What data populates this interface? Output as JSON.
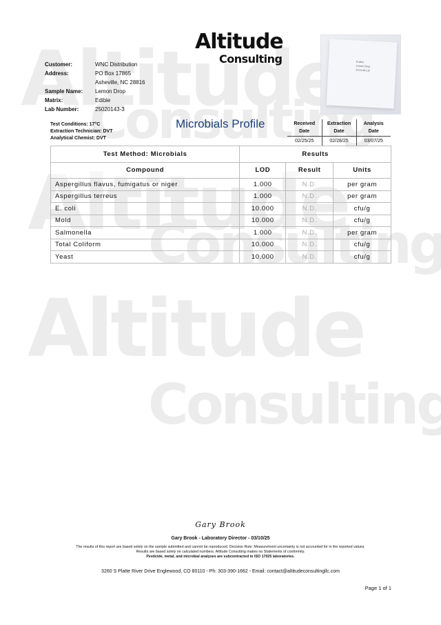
{
  "watermark": {
    "line1": "Altitude",
    "line2": "Consulting"
  },
  "logo": {
    "line1": "Altitude",
    "line2": "Consulting"
  },
  "customer_info": [
    {
      "label": "Customer:",
      "value": "WNC Distribution"
    },
    {
      "label": "Address:",
      "value": "PO Box 17865"
    },
    {
      "label": "",
      "value": "Asheville, NC 28816"
    },
    {
      "label": "Sample Name:",
      "value": "Lemon Drop"
    },
    {
      "label": "Matrix:",
      "value": "Edible"
    },
    {
      "label": "Lab Number:",
      "value": "25020143-3"
    }
  ],
  "sample_photo": {
    "label_lines": [
      "Kushie",
      "Lemon Drop",
      "2411148-LD"
    ]
  },
  "conditions": [
    "Test Conditions: 17°C",
    "Extraction Technician: DVT",
    "Analytical Chemist: DVT"
  ],
  "title": "Microbials Profile",
  "dates": {
    "headers": [
      [
        "Received",
        "Date"
      ],
      [
        "Extraction",
        "Date"
      ],
      [
        "Analysis",
        "Date"
      ]
    ],
    "values": [
      "02/25/25",
      "02/28/25",
      "03/07/25"
    ]
  },
  "results_table": {
    "method": "Test Method: Microbials",
    "results_header": "Results",
    "columns": [
      "Compound",
      "LOD",
      "Result",
      "Units"
    ],
    "rows": [
      [
        "Aspergillus flavus, fumigatus or niger",
        "1.000",
        "N.D.",
        "per gram"
      ],
      [
        "Aspergillus terreus",
        "1.000",
        "N.D.",
        "per gram"
      ],
      [
        "E. coli",
        "10.000",
        "N.D.",
        "cfu/g"
      ],
      [
        "Mold",
        "10.000",
        "N.D.",
        "cfu/g"
      ],
      [
        "Salmonella",
        "1.000",
        "N.D.",
        "per gram"
      ],
      [
        "Total Coliform",
        "10.000",
        "N.D.",
        "cfu/g"
      ],
      [
        "Yeast",
        "10.000",
        "N.D.",
        "cfu/g"
      ]
    ]
  },
  "footer": {
    "signature": "Gary Brook",
    "director": "Gary Brook - Laboratory Director - 03/10/25",
    "disclaimer1": "The results of this report are based solely on the sample submitted and cannot be reproduced. Decision Rule: Measurement uncertainty is not accounted for in the reported values.",
    "disclaimer2": "Results are based solely on calculated numbers. Altitude Consulting makes no Statements of conformity.",
    "disclaimer3": "Pesticide, metal, and microbial analyses are subcontracted to ISO 17025 laboratories.",
    "address": "3260 S Platte River Drive Englewood, CO 80110 - Ph: 303-390-1662 - Email: contact@altitudeconsultingllc.com",
    "page": "Page 1 of 1"
  }
}
